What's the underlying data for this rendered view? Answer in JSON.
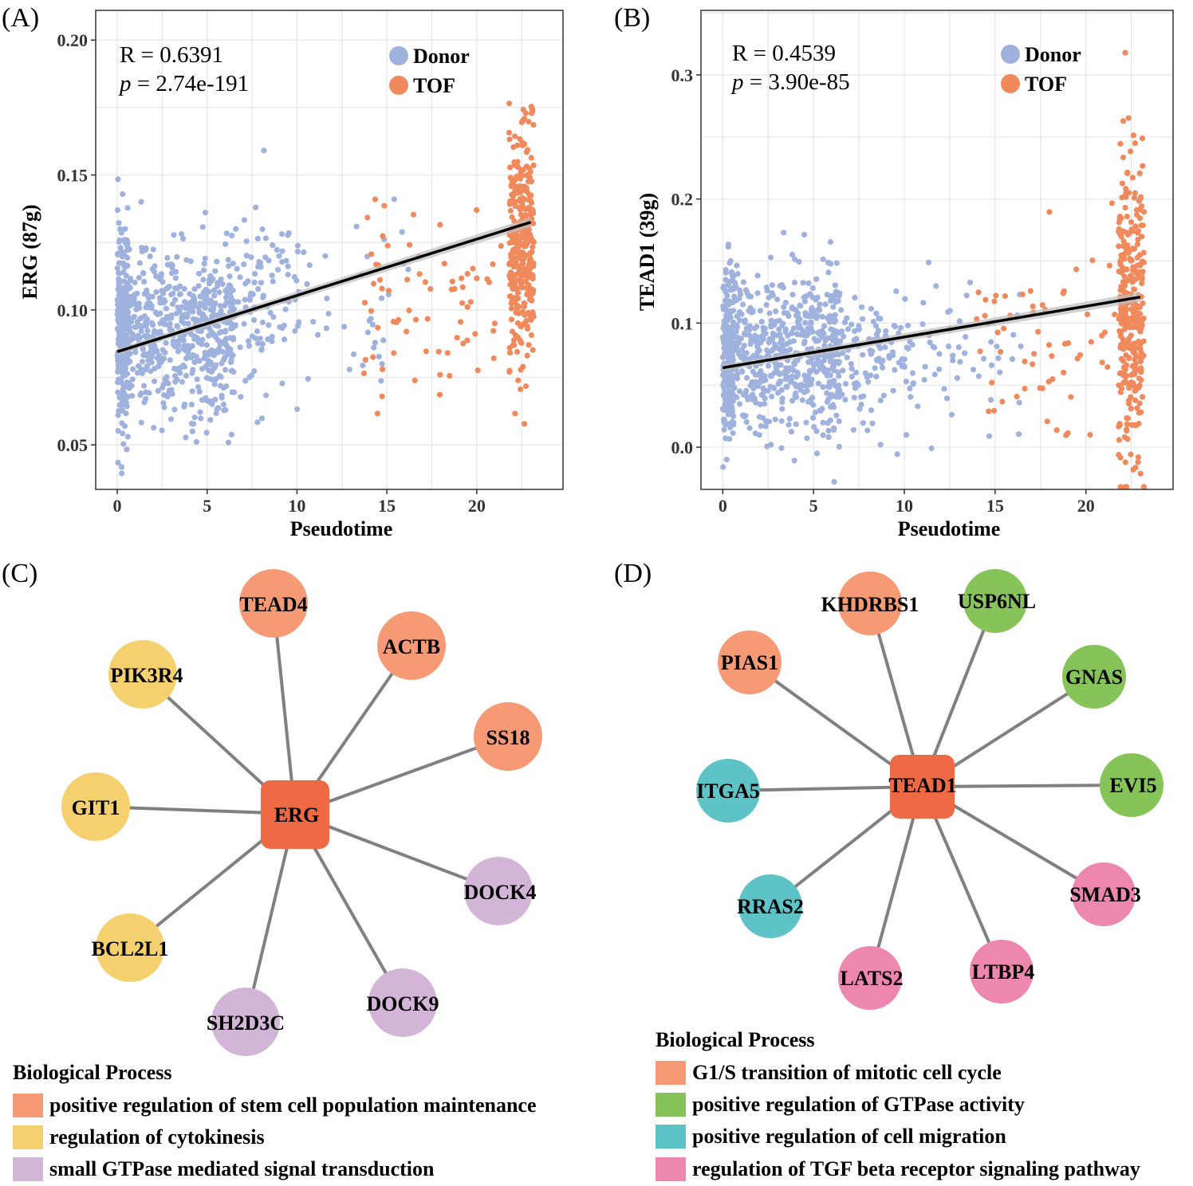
{
  "colors": {
    "donor": "#9fb2de",
    "tof": "#f08a5d",
    "regression": "#000000",
    "band": "#bdbdbd",
    "grid": "#e6e6e6",
    "edge": "#808080",
    "hub": "#ee6a44"
  },
  "chart_data": [
    {
      "panel": "(A)",
      "type": "scatter",
      "xlabel": "Pseudotime",
      "ylabel": "ERG (87g)",
      "xlim": [
        -1.2,
        24.8
      ],
      "ylim": [
        0.0335,
        0.211
      ],
      "xticks": [
        0,
        5,
        10,
        15,
        20
      ],
      "yticks": [
        0.05,
        0.1,
        0.15,
        0.2
      ],
      "ytick_labels": [
        "0.05",
        "0.10",
        "0.15",
        "0.20"
      ],
      "stat_r": "R = 0.6391",
      "stat_p_symbol": "p",
      "stat_p_value": " = 2.74e-191",
      "legend": [
        "Donor",
        "TOF"
      ],
      "regression": {
        "x0": 0,
        "y0": 0.0845,
        "x1": 23,
        "y1": 0.1325
      },
      "donor_clusters": [
        {
          "xmin": 0.0,
          "xmax": 0.6,
          "ymean": 0.092,
          "ysd": 0.019,
          "n": 240
        },
        {
          "xmin": 0.5,
          "xmax": 6.5,
          "ymean": 0.092,
          "ysd": 0.016,
          "n": 560
        },
        {
          "xmin": 6.0,
          "xmax": 10.2,
          "ymean": 0.1,
          "ysd": 0.016,
          "n": 120
        },
        {
          "xmin": 10.0,
          "xmax": 16.2,
          "ymean": 0.098,
          "ysd": 0.017,
          "n": 34
        }
      ],
      "tof_clusters": [
        {
          "xmin": 13.5,
          "xmax": 21.5,
          "ymean": 0.102,
          "ysd": 0.018,
          "n": 70
        },
        {
          "xmin": 21.8,
          "xmax": 23.2,
          "ymean": 0.122,
          "ysd": 0.024,
          "n": 330
        }
      ],
      "seed": 17
    },
    {
      "panel": "(B)",
      "type": "scatter",
      "xlabel": "Pseudotime",
      "ylabel": "TEAD1 (39g)",
      "xlim": [
        -1.2,
        24.8
      ],
      "ylim": [
        -0.034,
        0.352
      ],
      "xticks": [
        0,
        5,
        10,
        15,
        20
      ],
      "yticks": [
        0.0,
        0.1,
        0.2,
        0.3
      ],
      "ytick_labels": [
        "0.0",
        "0.1",
        "0.2",
        "0.3"
      ],
      "stat_r": "R = 0.4539",
      "stat_p_symbol": "p",
      "stat_p_value": " = 3.90e-85",
      "legend": [
        "Donor",
        "TOF"
      ],
      "regression": {
        "x0": 0,
        "y0": 0.064,
        "x1": 23,
        "y1": 0.121
      },
      "donor_clusters": [
        {
          "xmin": 0.0,
          "xmax": 0.6,
          "ymean": 0.072,
          "ysd": 0.035,
          "n": 220
        },
        {
          "xmin": 0.5,
          "xmax": 6.5,
          "ymean": 0.075,
          "ysd": 0.032,
          "n": 560
        },
        {
          "xmin": 6.0,
          "xmax": 10.5,
          "ymean": 0.072,
          "ysd": 0.03,
          "n": 130
        },
        {
          "xmin": 10.5,
          "xmax": 16.5,
          "ymean": 0.08,
          "ysd": 0.03,
          "n": 50
        }
      ],
      "tof_clusters": [
        {
          "xmin": 13.5,
          "xmax": 21.8,
          "ymean": 0.085,
          "ysd": 0.04,
          "n": 60
        },
        {
          "xmin": 21.8,
          "xmax": 23.2,
          "ymean": 0.105,
          "ysd": 0.06,
          "n": 330
        }
      ],
      "seed": 41
    }
  ],
  "network_c": {
    "panel": "(C)",
    "hub": "ERG",
    "nodes": [
      {
        "label": "TEAD4",
        "group": "orange"
      },
      {
        "label": "ACTB",
        "group": "orange"
      },
      {
        "label": "SS18",
        "group": "orange"
      },
      {
        "label": "PIK3R4",
        "group": "yellow"
      },
      {
        "label": "GIT1",
        "group": "yellow"
      },
      {
        "label": "BCL2L1",
        "group": "yellow"
      },
      {
        "label": "DOCK4",
        "group": "purple"
      },
      {
        "label": "DOCK9",
        "group": "purple"
      },
      {
        "label": "SH2D3C",
        "group": "purple"
      }
    ],
    "legend_title": "Biological Process",
    "legend": [
      {
        "label": "positive regulation of stem cell population maintenance",
        "color": "#f59a75"
      },
      {
        "label": "regulation of cytokinesis",
        "color": "#f5d06e"
      },
      {
        "label": "small GTPase mediated signal transduction",
        "color": "#d3b5d8"
      }
    ]
  },
  "network_d": {
    "panel": "(D)",
    "hub": "TEAD1",
    "nodes": [
      {
        "label": "KHDRBS1",
        "group": "orange"
      },
      {
        "label": "PIAS1",
        "group": "orange"
      },
      {
        "label": "USP6NL",
        "group": "green"
      },
      {
        "label": "GNAS",
        "group": "green"
      },
      {
        "label": "EVI5",
        "group": "green"
      },
      {
        "label": "ITGA5",
        "group": "teal"
      },
      {
        "label": "RRAS2",
        "group": "teal"
      },
      {
        "label": "SMAD3",
        "group": "pink"
      },
      {
        "label": "LTBP4",
        "group": "pink"
      },
      {
        "label": "LATS2",
        "group": "pink"
      }
    ],
    "legend_title": "Biological Process",
    "legend": [
      {
        "label": "G1/S transition of mitotic cell cycle",
        "color": "#f59a75"
      },
      {
        "label": "positive regulation of GTPase activity",
        "color": "#86c45a"
      },
      {
        "label": "positive regulation of cell migration",
        "color": "#5ec3c6"
      },
      {
        "label": "regulation of TGF beta receptor signaling pathway",
        "color": "#ee87b0"
      }
    ]
  },
  "node_colors": {
    "orange": "#f59a75",
    "yellow": "#f5d06e",
    "purple": "#d3b5d8",
    "green": "#86c45a",
    "teal": "#5ec3c6",
    "pink": "#ee87b0"
  }
}
